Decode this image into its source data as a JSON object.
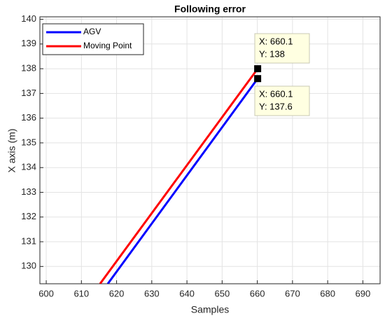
{
  "chart_data": {
    "type": "line",
    "title": "Following error",
    "xlabel": "Samples",
    "ylabel": "X axis (m)",
    "series": [
      {
        "name": "AGV",
        "color": "#0000ff",
        "x": [
          617.5,
          660.1
        ],
        "values": [
          129.3,
          137.6
        ]
      },
      {
        "name": "Moving Point",
        "color": "#ff0000",
        "x": [
          615.3,
          660.1
        ],
        "values": [
          129.3,
          138
        ]
      }
    ],
    "xlim": [
      598.2,
      694.9
    ],
    "ylim": [
      129.3,
      140.1
    ],
    "xticks": [
      600,
      610,
      620,
      630,
      640,
      650,
      660,
      670,
      680,
      690
    ],
    "yticks": [
      130,
      131,
      132,
      133,
      134,
      135,
      136,
      137,
      138,
      139,
      140
    ],
    "grid": true,
    "legend_position": "upper-left",
    "data_tips": [
      {
        "x": 660.1,
        "y": 138,
        "x_label": "X: 660.1",
        "y_label": "Y: 138"
      },
      {
        "x": 660.1,
        "y": 137.6,
        "x_label": "X: 660.1",
        "y_label": "Y: 137.6"
      }
    ]
  }
}
